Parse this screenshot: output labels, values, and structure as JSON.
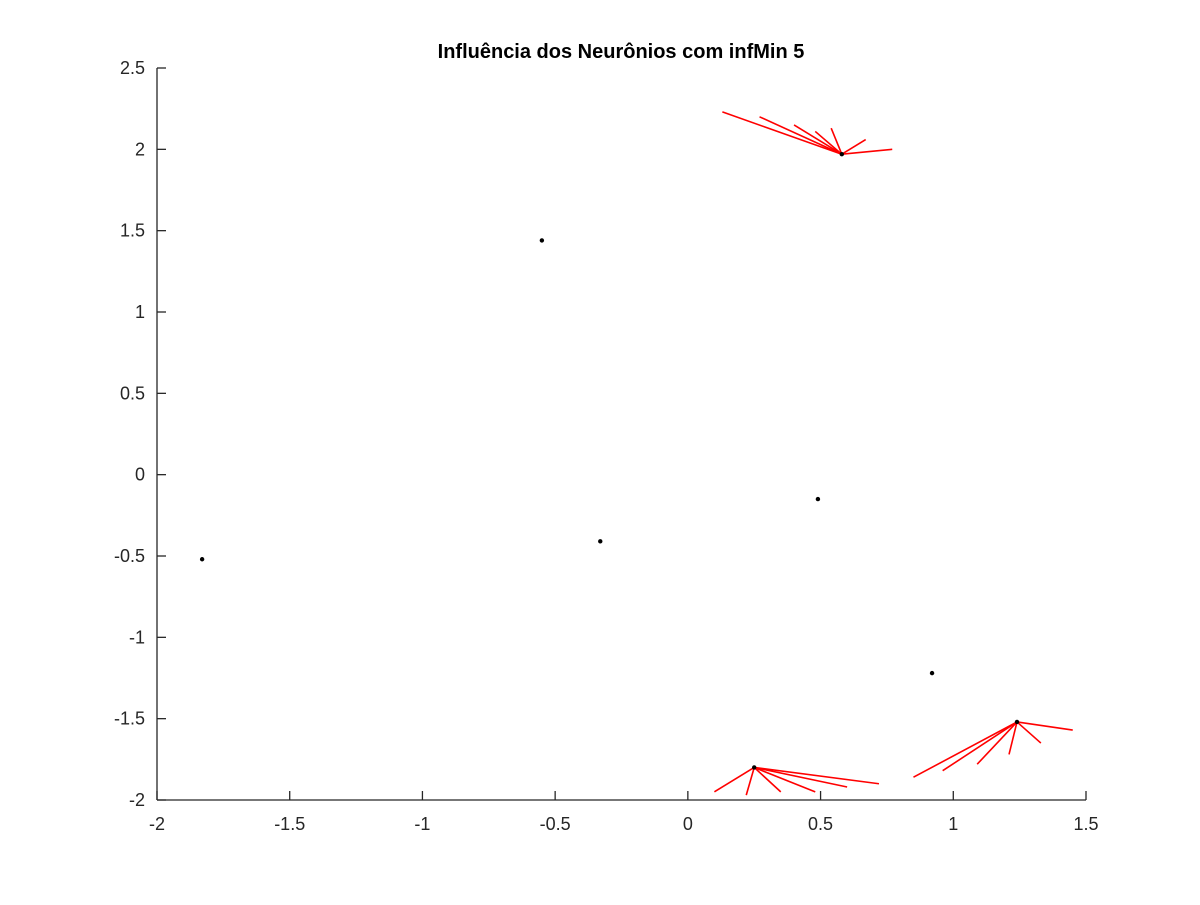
{
  "chart_data": {
    "type": "scatter",
    "title": "Influência dos Neurônios com infMin 5",
    "xlabel": "",
    "ylabel": "",
    "xlim": [
      -2,
      1.5
    ],
    "ylim": [
      -2,
      2.5
    ],
    "xticks": [
      -2,
      -1.5,
      -1,
      -0.5,
      0,
      0.5,
      1,
      1.5
    ],
    "yticks": [
      -2,
      -1.5,
      -1,
      -0.5,
      0,
      0.5,
      1,
      1.5,
      2,
      2.5
    ],
    "xtick_labels": [
      "-2",
      "-1.5",
      "-1",
      "-0.5",
      "0",
      "0.5",
      "1",
      "1.5"
    ],
    "ytick_labels": [
      "-2",
      "-1.5",
      "-1",
      "-0.5",
      "0",
      "0.5",
      "1",
      "1.5",
      "2",
      "2.5"
    ],
    "grid": false,
    "legend": "none",
    "colors": {
      "points": "#000000",
      "links": "#ff0000",
      "axes": "#262626"
    },
    "neurons": [
      {
        "x": 0.58,
        "y": 1.97
      },
      {
        "x": -0.55,
        "y": 1.44
      },
      {
        "x": -1.83,
        "y": -0.52
      },
      {
        "x": -0.33,
        "y": -0.41
      },
      {
        "x": 0.49,
        "y": -0.15
      },
      {
        "x": 0.92,
        "y": -1.22
      },
      {
        "x": 1.24,
        "y": -1.52
      },
      {
        "x": 0.25,
        "y": -1.8
      }
    ],
    "influence_lines": [
      {
        "from": [
          0.58,
          1.97
        ],
        "to": [
          0.13,
          2.23
        ]
      },
      {
        "from": [
          0.58,
          1.97
        ],
        "to": [
          0.27,
          2.2
        ]
      },
      {
        "from": [
          0.58,
          1.97
        ],
        "to": [
          0.4,
          2.15
        ]
      },
      {
        "from": [
          0.58,
          1.97
        ],
        "to": [
          0.48,
          2.11
        ]
      },
      {
        "from": [
          0.58,
          1.97
        ],
        "to": [
          0.54,
          2.13
        ]
      },
      {
        "from": [
          0.58,
          1.97
        ],
        "to": [
          0.67,
          2.06
        ]
      },
      {
        "from": [
          0.58,
          1.97
        ],
        "to": [
          0.77,
          2.0
        ]
      },
      {
        "from": [
          1.24,
          -1.52
        ],
        "to": [
          0.85,
          -1.86
        ]
      },
      {
        "from": [
          1.24,
          -1.52
        ],
        "to": [
          0.96,
          -1.82
        ]
      },
      {
        "from": [
          1.24,
          -1.52
        ],
        "to": [
          1.09,
          -1.78
        ]
      },
      {
        "from": [
          1.24,
          -1.52
        ],
        "to": [
          1.21,
          -1.72
        ]
      },
      {
        "from": [
          1.24,
          -1.52
        ],
        "to": [
          1.33,
          -1.65
        ]
      },
      {
        "from": [
          1.24,
          -1.52
        ],
        "to": [
          1.45,
          -1.57
        ]
      },
      {
        "from": [
          0.25,
          -1.8
        ],
        "to": [
          0.1,
          -1.95
        ]
      },
      {
        "from": [
          0.25,
          -1.8
        ],
        "to": [
          0.22,
          -1.97
        ]
      },
      {
        "from": [
          0.25,
          -1.8
        ],
        "to": [
          0.35,
          -1.95
        ]
      },
      {
        "from": [
          0.25,
          -1.8
        ],
        "to": [
          0.48,
          -1.95
        ]
      },
      {
        "from": [
          0.25,
          -1.8
        ],
        "to": [
          0.6,
          -1.92
        ]
      },
      {
        "from": [
          0.25,
          -1.8
        ],
        "to": [
          0.72,
          -1.9
        ]
      }
    ]
  }
}
